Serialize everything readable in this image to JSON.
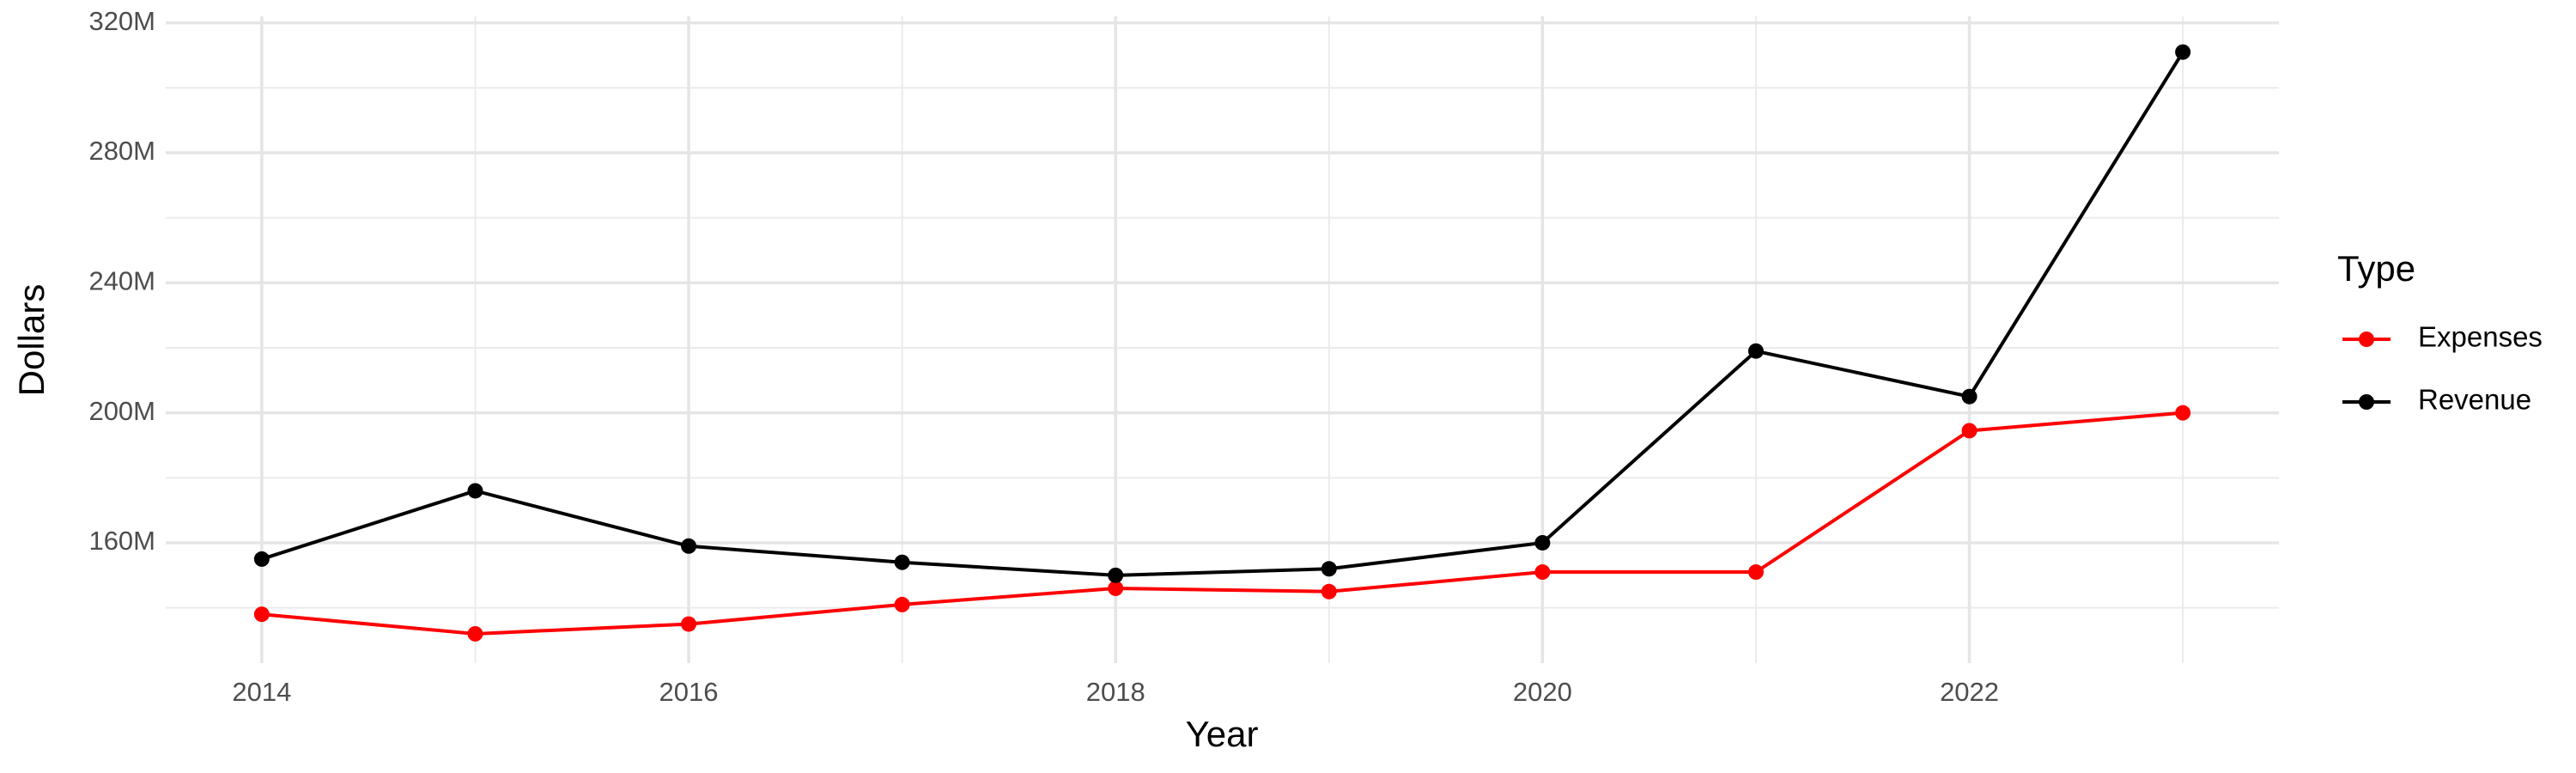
{
  "chart_data": {
    "type": "line",
    "x_label": "Year",
    "y_label": "Dollars",
    "legend_title": "Type",
    "legend_position": "right",
    "x": [
      2014,
      2015,
      2016,
      2017,
      2018,
      2019,
      2020,
      2021,
      2022,
      2023
    ],
    "series": [
      {
        "name": "Expenses",
        "color": "#ff0000",
        "values": [
          138000000,
          132000000,
          135000000,
          141000000,
          146000000,
          145000000,
          151000000,
          151000000,
          194500000,
          200000000
        ]
      },
      {
        "name": "Revenue",
        "color": "#000000",
        "values": [
          155000000,
          176000000,
          159000000,
          154000000,
          150000000,
          152000000,
          160000000,
          219000000,
          205000000,
          311000000
        ]
      }
    ],
    "xlim": [
      2013.55,
      2023.45
    ],
    "xticks": [
      2014,
      2016,
      2018,
      2020,
      2022
    ],
    "minor_xticks": [
      2015,
      2017,
      2019,
      2021,
      2023
    ],
    "ylim": [
      123000000,
      322000000
    ],
    "yticks": [
      {
        "value": 160000000,
        "label": "160M"
      },
      {
        "value": 200000000,
        "label": "200M"
      },
      {
        "value": 240000000,
        "label": "240M"
      },
      {
        "value": 280000000,
        "label": "280M"
      },
      {
        "value": 320000000,
        "label": "320M"
      }
    ],
    "minor_yticks": [
      140000000,
      180000000,
      220000000,
      260000000,
      300000000
    ],
    "grid": true
  }
}
